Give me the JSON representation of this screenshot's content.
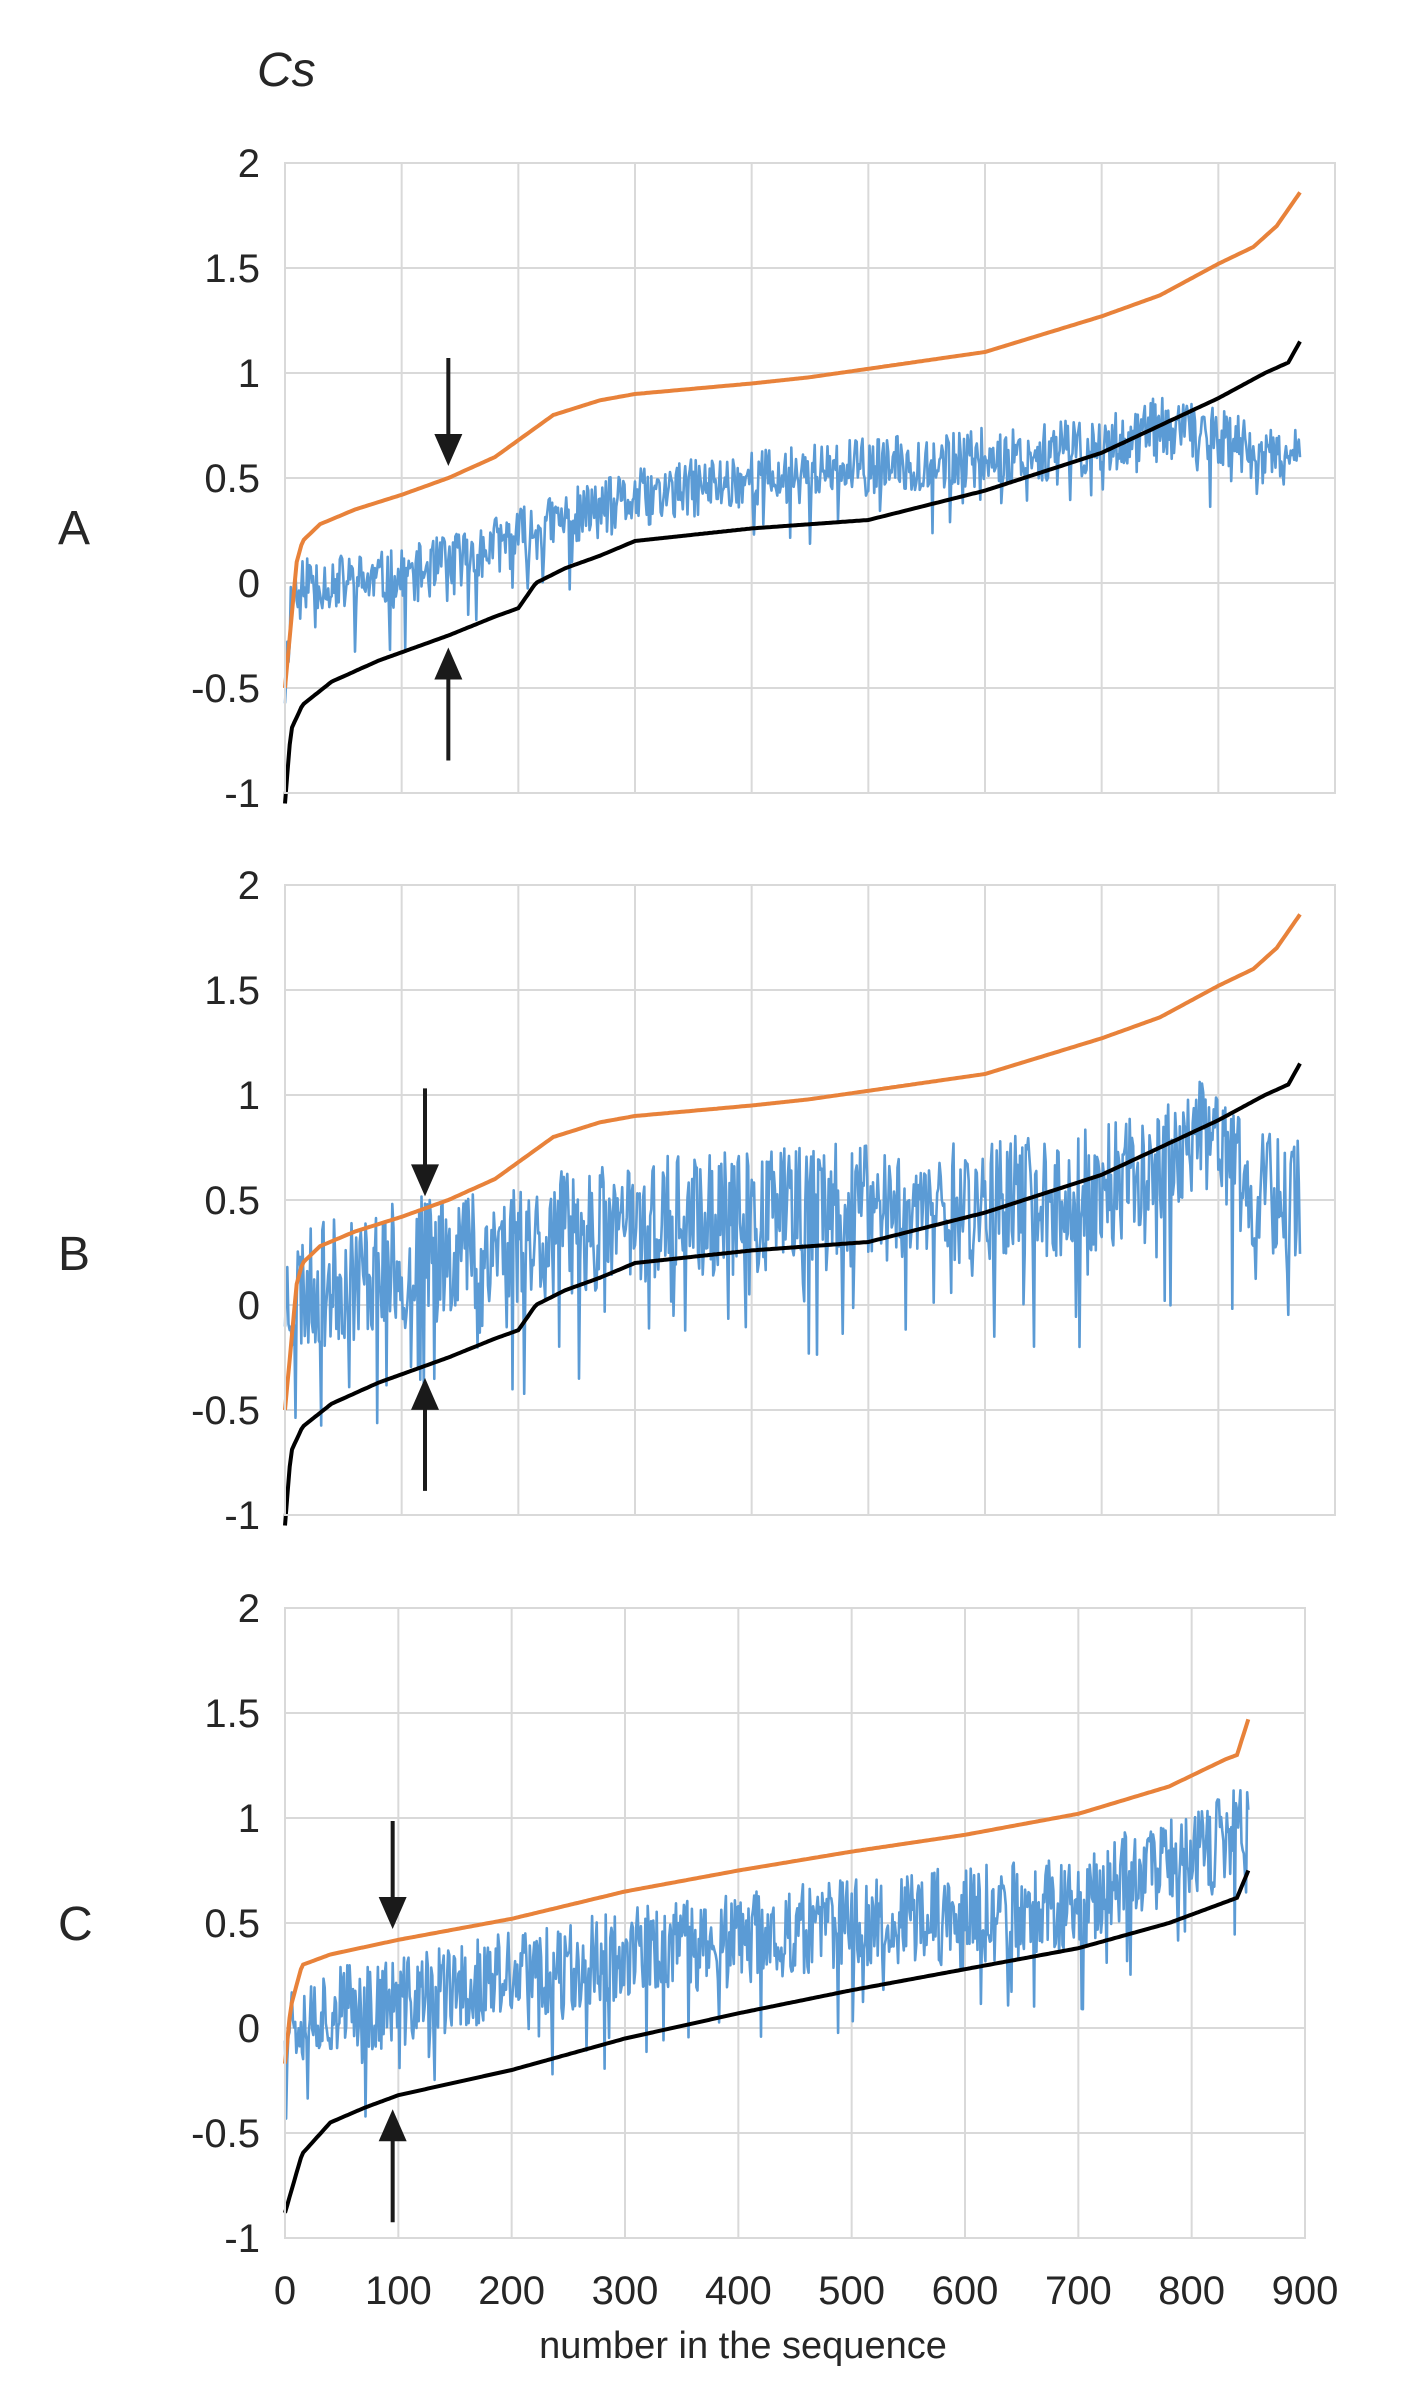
{
  "chart_data": {
    "type": "line",
    "ylabel": "Cs",
    "xlabel": "number in the sequence",
    "xlim": [
      0,
      900
    ],
    "x_ticks": [
      "0",
      "100",
      "200",
      "300",
      "400",
      "500",
      "600",
      "700",
      "800",
      "900"
    ],
    "y_ticks": [
      "2",
      "1.5",
      "1",
      "0.5",
      "0",
      "-0.5",
      "-1"
    ],
    "ylim": [
      -1,
      2
    ],
    "grid": true,
    "colors": {
      "upper": "#E8823A",
      "lower": "#000000",
      "observed": "#5B9BD5",
      "arrow": "#1a1a1a"
    },
    "panels": [
      {
        "label": "A",
        "n": 870,
        "noise": 0.14,
        "arrow_x": 140,
        "upper": [
          [
            0,
            -0.5
          ],
          [
            5,
            -0.2
          ],
          [
            10,
            0.1
          ],
          [
            15,
            0.2
          ],
          [
            30,
            0.28
          ],
          [
            60,
            0.35
          ],
          [
            100,
            0.42
          ],
          [
            140,
            0.5
          ],
          [
            180,
            0.6
          ],
          [
            210,
            0.72
          ],
          [
            230,
            0.8
          ],
          [
            270,
            0.87
          ],
          [
            300,
            0.9
          ],
          [
            400,
            0.95
          ],
          [
            450,
            0.98
          ],
          [
            500,
            1.02
          ],
          [
            600,
            1.1
          ],
          [
            700,
            1.27
          ],
          [
            750,
            1.37
          ],
          [
            800,
            1.52
          ],
          [
            830,
            1.6
          ],
          [
            850,
            1.7
          ],
          [
            870,
            1.86
          ]
        ],
        "lower": [
          [
            0,
            -1.05
          ],
          [
            5,
            -0.7
          ],
          [
            15,
            -0.58
          ],
          [
            40,
            -0.47
          ],
          [
            80,
            -0.37
          ],
          [
            120,
            -0.29
          ],
          [
            140,
            -0.25
          ],
          [
            180,
            -0.16
          ],
          [
            200,
            -0.12
          ],
          [
            215,
            0
          ],
          [
            240,
            0.07
          ],
          [
            270,
            0.13
          ],
          [
            300,
            0.2
          ],
          [
            400,
            0.26
          ],
          [
            500,
            0.3
          ],
          [
            600,
            0.44
          ],
          [
            700,
            0.62
          ],
          [
            750,
            0.75
          ],
          [
            800,
            0.88
          ],
          [
            840,
            1.0
          ],
          [
            860,
            1.05
          ],
          [
            870,
            1.15
          ]
        ],
        "observed": [
          [
            0,
            -0.5
          ],
          [
            5,
            -0.1
          ],
          [
            10,
            0.02
          ],
          [
            50,
            0.0
          ],
          [
            100,
            0.02
          ],
          [
            150,
            0.12
          ],
          [
            200,
            0.22
          ],
          [
            250,
            0.32
          ],
          [
            300,
            0.4
          ],
          [
            400,
            0.5
          ],
          [
            500,
            0.55
          ],
          [
            600,
            0.6
          ],
          [
            700,
            0.65
          ],
          [
            750,
            0.75
          ],
          [
            800,
            0.7
          ],
          [
            830,
            0.62
          ],
          [
            850,
            0.58
          ],
          [
            870,
            0.6
          ]
        ]
      },
      {
        "label": "B",
        "n": 870,
        "noise": 0.3,
        "arrow_x": 120,
        "upper": [
          [
            0,
            -0.5
          ],
          [
            5,
            -0.2
          ],
          [
            10,
            0.1
          ],
          [
            15,
            0.2
          ],
          [
            30,
            0.28
          ],
          [
            60,
            0.35
          ],
          [
            100,
            0.42
          ],
          [
            140,
            0.5
          ],
          [
            180,
            0.6
          ],
          [
            210,
            0.72
          ],
          [
            230,
            0.8
          ],
          [
            270,
            0.87
          ],
          [
            300,
            0.9
          ],
          [
            400,
            0.95
          ],
          [
            450,
            0.98
          ],
          [
            500,
            1.02
          ],
          [
            600,
            1.1
          ],
          [
            700,
            1.27
          ],
          [
            750,
            1.37
          ],
          [
            800,
            1.52
          ],
          [
            830,
            1.6
          ],
          [
            850,
            1.7
          ],
          [
            870,
            1.86
          ]
        ],
        "lower": [
          [
            0,
            -1.05
          ],
          [
            5,
            -0.7
          ],
          [
            15,
            -0.58
          ],
          [
            40,
            -0.47
          ],
          [
            80,
            -0.37
          ],
          [
            120,
            -0.29
          ],
          [
            140,
            -0.25
          ],
          [
            180,
            -0.16
          ],
          [
            200,
            -0.12
          ],
          [
            215,
            0
          ],
          [
            240,
            0.07
          ],
          [
            270,
            0.13
          ],
          [
            300,
            0.2
          ],
          [
            400,
            0.26
          ],
          [
            500,
            0.3
          ],
          [
            600,
            0.44
          ],
          [
            700,
            0.62
          ],
          [
            750,
            0.75
          ],
          [
            800,
            0.88
          ],
          [
            840,
            1.0
          ],
          [
            860,
            1.05
          ],
          [
            870,
            1.15
          ]
        ],
        "observed": [
          [
            0,
            0.05
          ],
          [
            50,
            0.12
          ],
          [
            100,
            0.2
          ],
          [
            150,
            0.28
          ],
          [
            200,
            0.3
          ],
          [
            300,
            0.4
          ],
          [
            400,
            0.45
          ],
          [
            500,
            0.48
          ],
          [
            600,
            0.5
          ],
          [
            700,
            0.55
          ],
          [
            750,
            0.7
          ],
          [
            800,
            0.8
          ],
          [
            830,
            0.55
          ],
          [
            870,
            0.5
          ]
        ]
      },
      {
        "label": "C",
        "n": 850,
        "noise": 0.22,
        "arrow_x": 95,
        "upper": [
          [
            0,
            -0.17
          ],
          [
            5,
            0.1
          ],
          [
            15,
            0.3
          ],
          [
            40,
            0.35
          ],
          [
            100,
            0.42
          ],
          [
            200,
            0.52
          ],
          [
            300,
            0.65
          ],
          [
            400,
            0.75
          ],
          [
            500,
            0.84
          ],
          [
            600,
            0.92
          ],
          [
            700,
            1.02
          ],
          [
            780,
            1.15
          ],
          [
            830,
            1.28
          ],
          [
            840,
            1.3
          ],
          [
            850,
            1.47
          ]
        ],
        "lower": [
          [
            0,
            -0.88
          ],
          [
            15,
            -0.6
          ],
          [
            40,
            -0.45
          ],
          [
            70,
            -0.38
          ],
          [
            100,
            -0.32
          ],
          [
            150,
            -0.26
          ],
          [
            200,
            -0.2
          ],
          [
            300,
            -0.05
          ],
          [
            400,
            0.07
          ],
          [
            500,
            0.18
          ],
          [
            600,
            0.28
          ],
          [
            700,
            0.38
          ],
          [
            780,
            0.5
          ],
          [
            820,
            0.58
          ],
          [
            840,
            0.62
          ],
          [
            850,
            0.75
          ]
        ],
        "observed": [
          [
            0,
            0.05
          ],
          [
            50,
            0.1
          ],
          [
            100,
            0.12
          ],
          [
            200,
            0.25
          ],
          [
            300,
            0.35
          ],
          [
            400,
            0.42
          ],
          [
            500,
            0.5
          ],
          [
            600,
            0.55
          ],
          [
            700,
            0.6
          ],
          [
            750,
            0.75
          ],
          [
            800,
            0.8
          ],
          [
            850,
            0.95
          ]
        ]
      }
    ]
  }
}
